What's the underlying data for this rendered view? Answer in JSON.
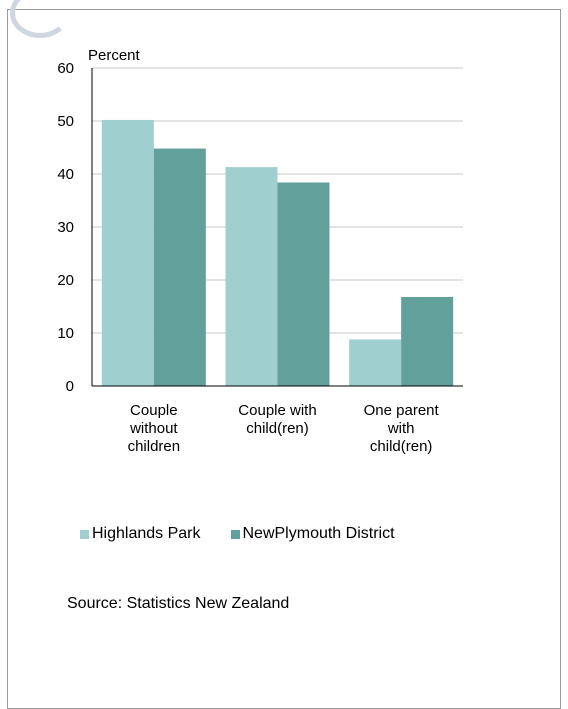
{
  "chart_data": {
    "type": "bar",
    "ylabel": "Percent",
    "ylim": [
      0,
      60
    ],
    "yticks": [
      0,
      10,
      20,
      30,
      40,
      50,
      60
    ],
    "grid": true,
    "legend_position": "bottom",
    "categories": [
      [
        "Couple",
        "without",
        "children"
      ],
      [
        "Couple with",
        "child(ren)"
      ],
      [
        "One parent",
        "with",
        "child(ren)"
      ]
    ],
    "series": [
      {
        "name": "Highlands Park",
        "color": "#9fcfcf",
        "values": [
          50.2,
          41.3,
          8.8
        ]
      },
      {
        "name": "NewPlymouth District",
        "color": "#62a09c",
        "values": [
          44.8,
          38.4,
          16.8
        ]
      }
    ],
    "source": "Source: Statistics New Zealand"
  }
}
